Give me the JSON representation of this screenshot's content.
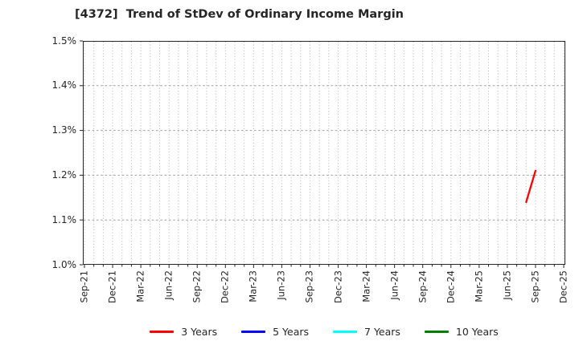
{
  "colors": {
    "background": "#ffffff",
    "axis": "#262626",
    "text": "#262626",
    "grid_vertical": "#b5b5b5",
    "grid_horizontal": "#9e9e9e",
    "series_red": "#ff0000",
    "series_blue": "#0000ff",
    "series_cyan": "#00ffff",
    "series_green": "#008000"
  },
  "chart_data": {
    "type": "line",
    "title": "[4372]  Trend of StDev of Ordinary Income Margin",
    "xlabel": "",
    "ylabel": "",
    "ylim": [
      1.0,
      1.5
    ],
    "y_ticks": [
      "1.0%",
      "1.1%",
      "1.2%",
      "1.3%",
      "1.4%",
      "1.5%"
    ],
    "x_ticks": [
      "Sep-21",
      "Dec-21",
      "Mar-22",
      "Jun-22",
      "Sep-22",
      "Dec-22",
      "Mar-23",
      "Jun-23",
      "Sep-23",
      "Dec-23",
      "Mar-24",
      "Jun-24",
      "Sep-24",
      "Dec-24",
      "Mar-25",
      "Jun-25",
      "Sep-25",
      "Dec-25"
    ],
    "x_minor_grid": "monthly",
    "grid": true,
    "legend_position": "bottom-center",
    "series": [
      {
        "name": "3 Years",
        "color": "#ff0000",
        "x": [
          "Aug-25",
          "Sep-25"
        ],
        "y": [
          1.14,
          1.21
        ]
      },
      {
        "name": "5 Years",
        "color": "#0000ff",
        "x": [],
        "y": []
      },
      {
        "name": "7 Years",
        "color": "#00ffff",
        "x": [],
        "y": []
      },
      {
        "name": "10 Years",
        "color": "#008000",
        "x": [],
        "y": []
      }
    ]
  }
}
